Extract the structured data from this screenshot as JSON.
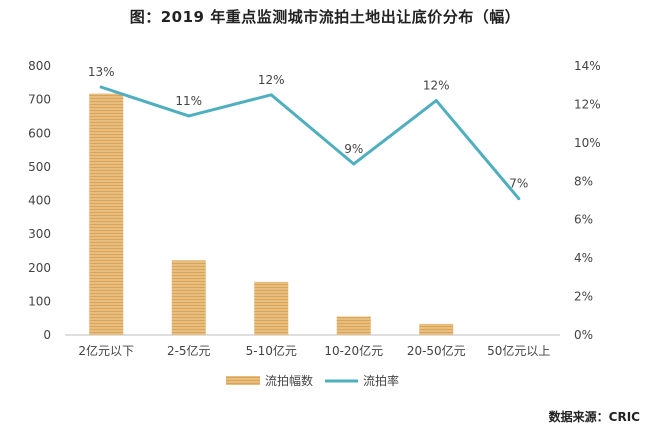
{
  "title": "图：2019 年重点监测城市流拍土地出让底价分布（幅）",
  "source": "数据来源：CRIC",
  "colors": {
    "bar": "#E8BE7E",
    "bar_stripe": "#D9A55C",
    "line": "#4FAFBF"
  },
  "chart_data": {
    "type": "bar",
    "categories": [
      "2亿元以下",
      "2-5亿元",
      "5-10亿元",
      "10-20亿元",
      "20-50亿元",
      "50亿元以上"
    ],
    "series": [
      {
        "name": "流拍幅数",
        "type": "bar",
        "axis": "left",
        "values": [
          718,
          222,
          158,
          55,
          33,
          0
        ]
      },
      {
        "name": "流拍率",
        "type": "line",
        "axis": "right",
        "values": [
          12.9,
          11.4,
          12.5,
          8.9,
          12.2,
          7.1
        ],
        "labels": [
          "13%",
          "11%",
          "12%",
          "9%",
          "12%",
          "7%"
        ]
      }
    ],
    "ylim": [
      0,
      800
    ],
    "yticks": [
      "0",
      "100",
      "200",
      "300",
      "400",
      "500",
      "600",
      "700",
      "800"
    ],
    "y2lim": [
      0,
      14
    ],
    "y2ticks": [
      "0%",
      "2%",
      "4%",
      "6%",
      "8%",
      "10%",
      "12%",
      "14%"
    ],
    "legend": "bottom-center",
    "grid": false
  }
}
